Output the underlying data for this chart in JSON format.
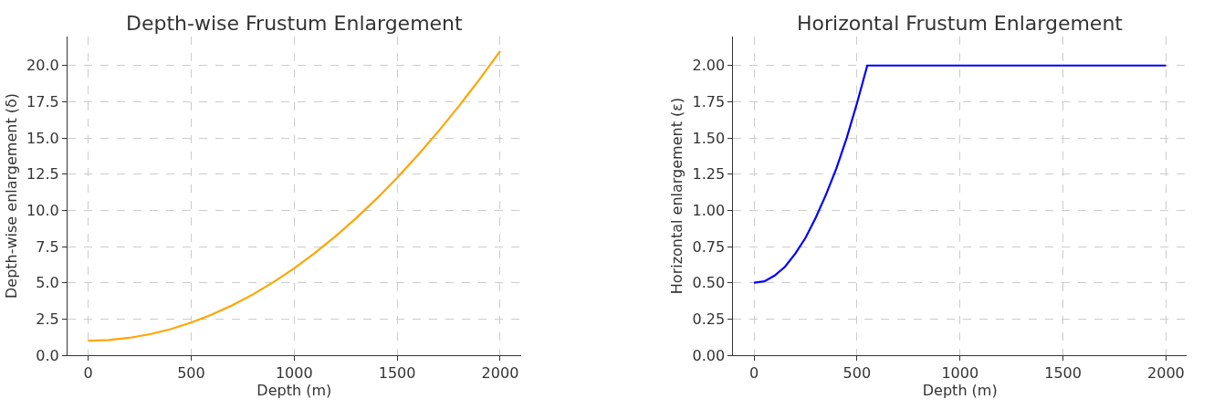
{
  "chart_data": [
    {
      "type": "line",
      "title": "Depth-wise Frustum Enlargement",
      "xlabel": "Depth (m)",
      "ylabel": "Depth-wise enlargement (δ)",
      "x": [
        0,
        100,
        200,
        300,
        400,
        500,
        600,
        700,
        800,
        900,
        1000,
        1100,
        1200,
        1300,
        1400,
        1500,
        1600,
        1700,
        1800,
        1900,
        2000
      ],
      "series": [
        {
          "color": "#ffa500",
          "values": [
            1,
            1.05,
            1.2,
            1.45,
            1.8,
            2.25,
            2.8,
            3.45,
            4.2,
            5.05,
            6,
            7.05,
            8.2,
            9.45,
            10.8,
            12.25,
            13.8,
            15.45,
            17.2,
            19.05,
            21
          ]
        }
      ],
      "xlim": [
        -100,
        2100
      ],
      "ylim": [
        0,
        22
      ],
      "xticks": [
        0,
        500,
        1000,
        1500,
        2000
      ],
      "yticks": [
        {
          "value": 0,
          "label": "0.0"
        },
        {
          "value": 2.5,
          "label": "2.5"
        },
        {
          "value": 5,
          "label": "5.0"
        },
        {
          "value": 7.5,
          "label": "7.5"
        },
        {
          "value": 10,
          "label": "10.0"
        },
        {
          "value": 12.5,
          "label": "12.5"
        },
        {
          "value": 15,
          "label": "15.0"
        },
        {
          "value": 17.5,
          "label": "17.5"
        },
        {
          "value": 20,
          "label": "20.0"
        }
      ],
      "grid": true,
      "line_style": "solid"
    },
    {
      "type": "line",
      "title": "Horizontal Frustum Enlargement",
      "xlabel": "Depth (m)",
      "ylabel": "Horizontal enlargement (ε)",
      "x": [
        0,
        50,
        100,
        150,
        200,
        250,
        300,
        350,
        400,
        450,
        500,
        550,
        2000
      ],
      "series": [
        {
          "color": "#0000ff",
          "values": [
            0.5,
            0.51,
            0.55,
            0.61,
            0.7,
            0.81,
            0.95,
            1.11,
            1.29,
            1.5,
            1.74,
            2,
            2
          ]
        }
      ],
      "xlim": [
        -100,
        2100
      ],
      "ylim": [
        0,
        2.2
      ],
      "xticks": [
        0,
        500,
        1000,
        1500,
        2000
      ],
      "yticks": [
        {
          "value": 0,
          "label": "0.00"
        },
        {
          "value": 0.25,
          "label": "0.25"
        },
        {
          "value": 0.5,
          "label": "0.50"
        },
        {
          "value": 0.75,
          "label": "0.75"
        },
        {
          "value": 1,
          "label": "1.00"
        },
        {
          "value": 1.25,
          "label": "1.25"
        },
        {
          "value": 1.5,
          "label": "1.50"
        },
        {
          "value": 1.75,
          "label": "1.75"
        },
        {
          "value": 2,
          "label": "2.00"
        }
      ],
      "grid": true,
      "line_style": "solid"
    }
  ]
}
